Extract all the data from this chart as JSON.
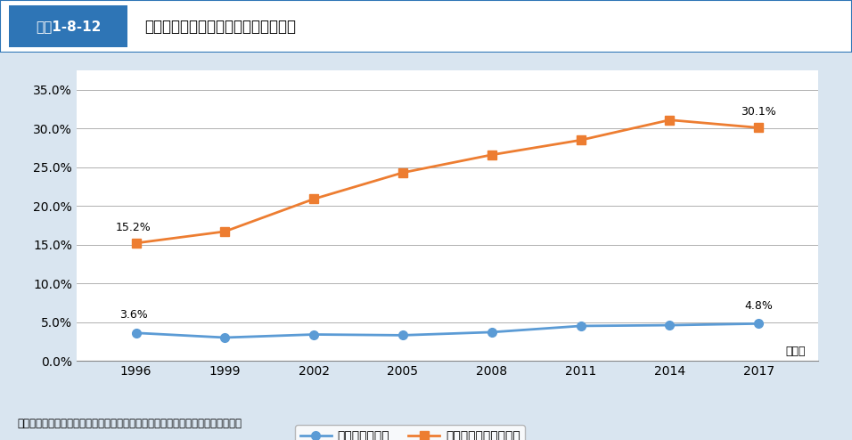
{
  "years": [
    1996,
    1999,
    2002,
    2005,
    2008,
    2011,
    2014,
    2017
  ],
  "tax_improvement": [
    3.6,
    3.0,
    3.4,
    3.3,
    3.7,
    4.5,
    4.6,
    4.8
  ],
  "social_security_improvement": [
    15.2,
    16.7,
    20.9,
    24.3,
    26.6,
    28.5,
    31.1,
    30.1
  ],
  "tax_color": "#5b9bd5",
  "social_security_color": "#ed7d31",
  "tax_label": "税による改善度",
  "social_label": "社会保障による改善度",
  "title": "図表1-8-12　税・社会保障によるジニ係数の改善度",
  "title_label": "税・社会保障によるジニ係数の改善度",
  "fig_label": "図表1-8-12",
  "ylabel_unit": "（年）",
  "source": "資料：厚生労働省政策統括官付政策立案・評価担当参事官室「所得再分配調査」",
  "ylim": [
    0,
    37.5
  ],
  "yticks": [
    0,
    5.0,
    10.0,
    15.0,
    20.0,
    25.0,
    30.0,
    35.0
  ],
  "bg_color": "#d9e5f0",
  "plot_bg_color": "#ffffff",
  "header_bg": "#ffffff",
  "fig_label_bg": "#2e75b6",
  "annotation_first_tax": "3.6%",
  "annotation_last_tax": "4.8%",
  "annotation_first_social": "15.2%",
  "annotation_last_social": "30.1%"
}
